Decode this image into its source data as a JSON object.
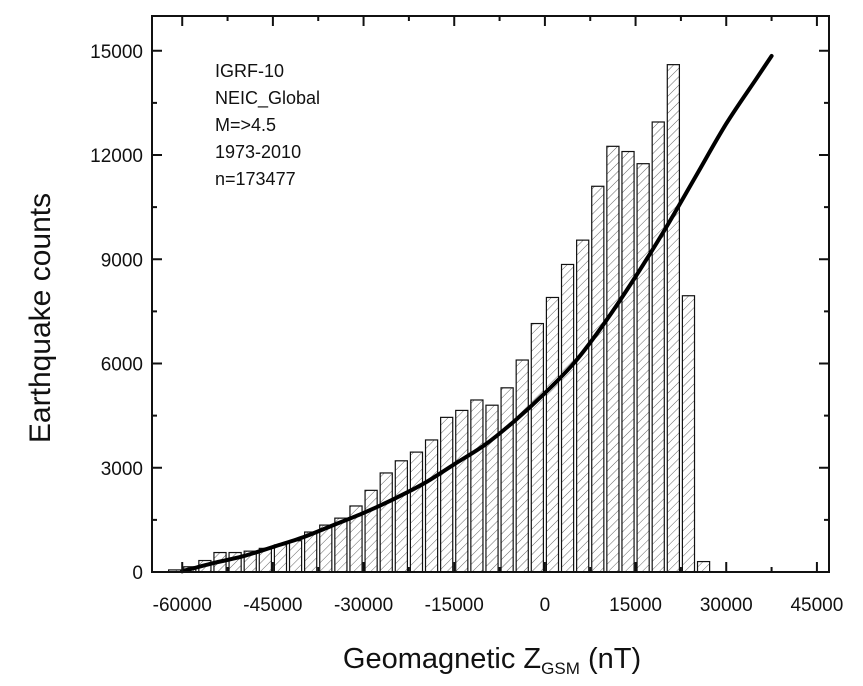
{
  "chart_data": {
    "type": "bar",
    "xlabel_main": "Geomagnetic Z",
    "xlabel_sub": "GSM",
    "xlabel_unit": " (nT)",
    "ylabel": "Earthquake counts",
    "xlim": [
      -65000,
      47000
    ],
    "ylim": [
      0,
      16000
    ],
    "x_ticks": [
      -60000,
      -45000,
      -30000,
      -15000,
      0,
      15000,
      30000,
      45000
    ],
    "y_ticks": [
      0,
      3000,
      6000,
      9000,
      12000,
      15000
    ],
    "x_tick_labels": [
      "-60000",
      "-45000",
      "-30000",
      "-15000",
      "0",
      "15000",
      "30000",
      "45000"
    ],
    "y_tick_labels": [
      "0",
      "3000",
      "6000",
      "9000",
      "12000",
      "15000"
    ],
    "bin_width": 2500,
    "bin_starts": [
      -62500,
      -60000,
      -57500,
      -55000,
      -52500,
      -50000,
      -47500,
      -45000,
      -42500,
      -40000,
      -37500,
      -35000,
      -32500,
      -30000,
      -27500,
      -25000,
      -22500,
      -20000,
      -17500,
      -15000,
      -12500,
      -10000,
      -7500,
      -5000,
      -2500,
      0,
      2500,
      5000,
      7500,
      10000,
      12500,
      15000,
      17500,
      20000,
      22500,
      25000,
      27500,
      30000,
      32500,
      35000,
      37500,
      40000,
      42500
    ],
    "values": [
      60,
      150,
      330,
      560,
      560,
      600,
      680,
      780,
      900,
      1150,
      1350,
      1550,
      1900,
      2350,
      2850,
      3200,
      3450,
      3800,
      4450,
      4650,
      4950,
      4800,
      5300,
      6100,
      7150,
      7900,
      8850,
      9550,
      11100,
      12250,
      12100,
      11750,
      12950,
      14600,
      7950,
      300,
      0,
      0,
      0,
      0,
      0,
      0,
      0
    ],
    "fit_curve": {
      "type": "line",
      "x": [
        -60000,
        -55000,
        -50000,
        -45000,
        -40000,
        -35000,
        -30000,
        -25000,
        -20000,
        -15000,
        -10000,
        -5000,
        0,
        5000,
        10000,
        15000,
        20000,
        25000,
        30000,
        35000,
        37500
      ],
      "y": [
        20,
        250,
        450,
        720,
        1000,
        1350,
        1700,
        2100,
        2550,
        3100,
        3650,
        4350,
        5150,
        6050,
        7200,
        8500,
        9900,
        11400,
        12900,
        14200,
        14850
      ]
    },
    "annotations": [
      "IGRF-10",
      "NEIC_Global",
      "M=>4.5",
      "1973-2010",
      "n=173477"
    ],
    "colors": {
      "bar_fill": "#ffffff",
      "bar_edge": "#111111",
      "hatch": "#555555",
      "curve": "#000000"
    },
    "grid": false,
    "bar_style": "hatched"
  }
}
